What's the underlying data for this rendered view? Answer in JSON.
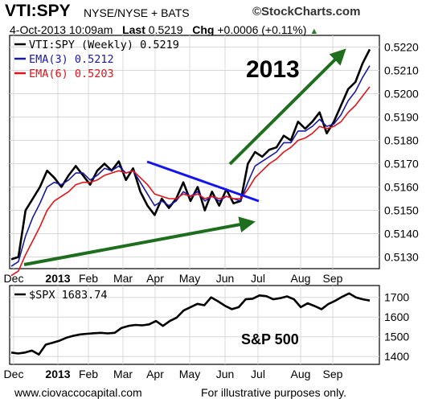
{
  "header": {
    "symbol": "VTI:SPY",
    "exchange": "NYSE/NYSE + BATS",
    "brand": "©StockCharts.com",
    "date": "4-Oct-2013 10:09am",
    "last_label": "Last",
    "last_value": "0.5219",
    "chg_label": "Chg",
    "chg_value": "+0.0006 (+0.11%)"
  },
  "footer": {
    "url": "www.ciovaccocapital.com",
    "note": "For illustrative purposes only."
  },
  "colors": {
    "price": "#000000",
    "ema3": "#1a1aa0",
    "ema6": "#e0141a",
    "trendline": "#1414ee",
    "arrow": "#1e6e1e"
  },
  "chart_data": [
    {
      "type": "line",
      "title": "VTI:SPY",
      "x_ticks": [
        "Dec",
        "2013",
        "Feb",
        "Mar",
        "Apr",
        "May",
        "Jun",
        "Jul",
        "Aug",
        "Sep"
      ],
      "ylim": [
        0.5125,
        0.5225
      ],
      "y_ticks": [
        "0.5130",
        "0.5140",
        "0.5150",
        "0.5160",
        "0.5170",
        "0.5180",
        "0.5190",
        "0.5200",
        "0.5210",
        "0.5220"
      ],
      "legend": [
        {
          "label": "VTI:SPY (Weekly) 0.5219",
          "color": "#000000"
        },
        {
          "label": "EMA(3) 0.5212",
          "color": "#1a1aa0"
        },
        {
          "label": "EMA(6) 0.5203",
          "color": "#e0141a"
        }
      ],
      "annotations": [
        "2013"
      ],
      "series": [
        {
          "name": "VTI:SPY (Weekly) 0.5219",
          "values": [
            0.5129,
            0.513,
            0.515,
            0.5155,
            0.516,
            0.5167,
            0.5164,
            0.516,
            0.5165,
            0.5169,
            0.5165,
            0.5161,
            0.5167,
            0.517,
            0.5167,
            0.5171,
            0.5163,
            0.5168,
            0.5158,
            0.5152,
            0.5148,
            0.5155,
            0.5151,
            0.5155,
            0.5162,
            0.5154,
            0.516,
            0.515,
            0.5158,
            0.5152,
            0.5159,
            0.5153,
            0.5154,
            0.517,
            0.5175,
            0.5173,
            0.5176,
            0.5177,
            0.5182,
            0.518,
            0.5188,
            0.5185,
            0.5188,
            0.5192,
            0.5183,
            0.5188,
            0.5195,
            0.5202,
            0.5205,
            0.5213,
            0.5219
          ]
        },
        {
          "name": "EMA(3) 0.5212",
          "values": [
            0.5126,
            0.5128,
            0.5139,
            0.5147,
            0.5153,
            0.516,
            0.5162,
            0.5161,
            0.5163,
            0.5166,
            0.5166,
            0.5163,
            0.5165,
            0.5168,
            0.5167,
            0.5169,
            0.5166,
            0.5167,
            0.5162,
            0.5157,
            0.5152,
            0.5154,
            0.5152,
            0.5154,
            0.5158,
            0.5156,
            0.5158,
            0.5154,
            0.5156,
            0.5154,
            0.5156,
            0.5155,
            0.5154,
            0.5162,
            0.5169,
            0.5171,
            0.5173,
            0.5175,
            0.5179,
            0.5179,
            0.5184,
            0.5184,
            0.5186,
            0.5189,
            0.5186,
            0.5187,
            0.5191,
            0.5197,
            0.5201,
            0.5207,
            0.5212
          ]
        },
        {
          "name": "EMA(6) 0.5203",
          "values": [
            0.5122,
            0.5124,
            0.5131,
            0.5137,
            0.5143,
            0.515,
            0.5154,
            0.5156,
            0.5158,
            0.5161,
            0.5162,
            0.5162,
            0.5163,
            0.5165,
            0.5166,
            0.5167,
            0.5166,
            0.5167,
            0.5164,
            0.5161,
            0.5157,
            0.5156,
            0.5155,
            0.5155,
            0.5157,
            0.5156,
            0.5157,
            0.5155,
            0.5156,
            0.5155,
            0.5156,
            0.5155,
            0.5155,
            0.5159,
            0.5164,
            0.5167,
            0.517,
            0.5172,
            0.5175,
            0.5177,
            0.518,
            0.5181,
            0.5183,
            0.5186,
            0.5185,
            0.5186,
            0.5188,
            0.5192,
            0.5195,
            0.5199,
            0.5203
          ]
        }
      ]
    },
    {
      "type": "line",
      "title": "$SPX",
      "x_ticks": [
        "Dec",
        "2013",
        "Feb",
        "Mar",
        "Apr",
        "May",
        "Jun",
        "Jul",
        "Aug",
        "Sep"
      ],
      "ylim": [
        1360,
        1760
      ],
      "y_ticks": [
        "1400",
        "1500",
        "1600",
        "1700"
      ],
      "legend": [
        {
          "label": "$SPX 1683.74",
          "color": "#000000"
        }
      ],
      "annotations": [
        "S&P 500"
      ],
      "series": [
        {
          "name": "$SPX 1683.74",
          "values": [
            1420,
            1415,
            1420,
            1430,
            1410,
            1460,
            1470,
            1480,
            1495,
            1505,
            1512,
            1515,
            1518,
            1520,
            1517,
            1520,
            1545,
            1555,
            1560,
            1558,
            1563,
            1580,
            1555,
            1580,
            1597,
            1633,
            1650,
            1667,
            1660,
            1700,
            1680,
            1657,
            1640,
            1650,
            1690,
            1693,
            1710,
            1706,
            1690,
            1696,
            1705,
            1690,
            1650,
            1670,
            1656,
            1640,
            1666,
            1683,
            1703,
            1720,
            1700,
            1690,
            1683.74
          ]
        }
      ]
    }
  ]
}
